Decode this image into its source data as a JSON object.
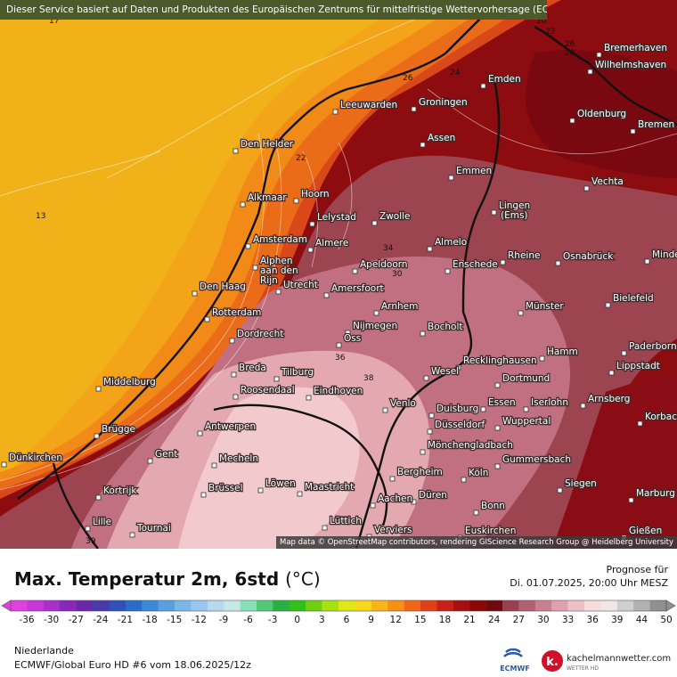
{
  "notice": "Dieser Service basiert auf Daten und Produkten des Europäischen Zentrums für mittelfristige Wettervorhersage (ECMWF)",
  "attribution": "Map data © OpenStreetMap contributors, rendering GIScience Research Group @ Heidelberg University",
  "title": "Max. Temperatur 2m, 6std",
  "title_unit": "(°C)",
  "forecast_label": "Prognose für",
  "forecast_date": "Di. 01.07.2025, 20:00 Uhr MESZ",
  "region": "Niederlande",
  "model": "ECMWF/Global Euro HD #6 vom  18.06.2025/12z",
  "ecmwf_label": "ECMWF",
  "brand_name": "kachelmannwetter.com",
  "brand_sub": "WETTER HD",
  "scale_ticks": [
    "-36",
    "-30",
    "-27",
    "-24",
    "-21",
    "-18",
    "-15",
    "-12",
    "-9",
    "-6",
    "-3",
    "0",
    "3",
    "6",
    "9",
    "12",
    "15",
    "18",
    "21",
    "24",
    "27",
    "30",
    "33",
    "36",
    "39",
    "44",
    "50"
  ],
  "scale_colors": [
    "#e040e0",
    "#c838d8",
    "#a830c8",
    "#8828b8",
    "#6a28a8",
    "#4a3aa8",
    "#3050b8",
    "#2a6ac8",
    "#3a88d8",
    "#58a0e0",
    "#78b8e8",
    "#98c8f0",
    "#b8d8f0",
    "#c8e8e8",
    "#88e0b8",
    "#50c878",
    "#28b040",
    "#30c018",
    "#70d010",
    "#a8e010",
    "#e0e818",
    "#f8d818",
    "#f8b418",
    "#f89018",
    "#f06818",
    "#e04018",
    "#c82018",
    "#a81010",
    "#8a0808",
    "#700810",
    "#984050",
    "#b06070",
    "#c88090",
    "#e0a0b0",
    "#f0c0c8",
    "#f8dcdc",
    "#f0e8e8",
    "#d0d0d0",
    "#b0b0b0",
    "#909090"
  ],
  "cities": [
    {
      "name": "Bremerhaven"
    },
    {
      "name": "Wilhelmshaven"
    },
    {
      "name": "Emden"
    },
    {
      "name": "Groningen"
    },
    {
      "name": "Leeuwarden"
    },
    {
      "name": "Oldenburg"
    },
    {
      "name": "Bremen"
    },
    {
      "name": "Assen"
    },
    {
      "name": "Den Helder"
    },
    {
      "name": "Emmen"
    },
    {
      "name": "Vechta"
    },
    {
      "name": "Alkmaar"
    },
    {
      "name": "Hoorn"
    },
    {
      "name": "Lelystad"
    },
    {
      "name": "Zwolle"
    },
    {
      "name": "Lingen"
    },
    {
      "name": "(Ems)"
    },
    {
      "name": "Amsterdam"
    },
    {
      "name": "Almere"
    },
    {
      "name": "Almelo"
    },
    {
      "name": "Alphen"
    },
    {
      "name": "aan den"
    },
    {
      "name": "Rijn"
    },
    {
      "name": "Apeldoorn"
    },
    {
      "name": "Enschede"
    },
    {
      "name": "Rheine"
    },
    {
      "name": "Osnabrück"
    },
    {
      "name": "Minden"
    },
    {
      "name": "Den Haag"
    },
    {
      "name": "Utrecht"
    },
    {
      "name": "Amersfoort"
    },
    {
      "name": "Rotterdam"
    },
    {
      "name": "Arnhem"
    },
    {
      "name": "Bielefeld"
    },
    {
      "name": "Münster"
    },
    {
      "name": "Nijmegen"
    },
    {
      "name": "Dordrecht"
    },
    {
      "name": "Oss"
    },
    {
      "name": "Bocholt"
    },
    {
      "name": "Paderborn"
    },
    {
      "name": "Hamm"
    },
    {
      "name": "Lippstadt"
    },
    {
      "name": "Breda"
    },
    {
      "name": "Tilburg"
    },
    {
      "name": "Recklinghausen"
    },
    {
      "name": "Wesel"
    },
    {
      "name": "Middelburg"
    },
    {
      "name": "Roosendaal"
    },
    {
      "name": "Eindhoven"
    },
    {
      "name": "Dortmund"
    },
    {
      "name": "Arnsberg"
    },
    {
      "name": "Venlo"
    },
    {
      "name": "Essen"
    },
    {
      "name": "Iserlohn"
    },
    {
      "name": "Duisburg"
    },
    {
      "name": "Korbach"
    },
    {
      "name": "Antwerpen"
    },
    {
      "name": "Düsseldorf"
    },
    {
      "name": "Wuppertal"
    },
    {
      "name": "Brügge"
    },
    {
      "name": "Mönchengladbach"
    },
    {
      "name": "Dünkirchen"
    },
    {
      "name": "Gent"
    },
    {
      "name": "Mecheln"
    },
    {
      "name": "Gummersbach"
    },
    {
      "name": "Bergheim"
    },
    {
      "name": "Köln"
    },
    {
      "name": "Kortrijk"
    },
    {
      "name": "Brüssel"
    },
    {
      "name": "Löwen"
    },
    {
      "name": "Maastricht"
    },
    {
      "name": "Düren"
    },
    {
      "name": "Siegen"
    },
    {
      "name": "Aachen"
    },
    {
      "name": "Marburg"
    },
    {
      "name": "Bonn"
    },
    {
      "name": "Lille"
    },
    {
      "name": "Lüttich"
    },
    {
      "name": "Tournai"
    },
    {
      "name": "Verviers"
    },
    {
      "name": "Euskirchen"
    },
    {
      "name": "Gießen"
    }
  ],
  "isolines": [
    "17",
    "13",
    "20",
    "22",
    "26",
    "28",
    "24",
    "26",
    "30",
    "22",
    "34",
    "30",
    "36",
    "38",
    "39"
  ]
}
